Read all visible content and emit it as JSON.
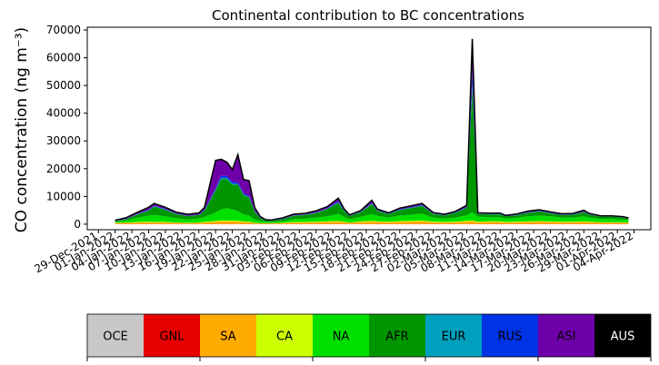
{
  "chart_data": {
    "type": "area",
    "stacked": true,
    "title": "Continental contribution to BC concentrations",
    "xlabel": "",
    "ylabel": "CO concentration (ng m⁻³)",
    "ylim": [
      -2000,
      71000
    ],
    "y_ticks": [
      0,
      10000,
      20000,
      30000,
      40000,
      50000,
      60000,
      70000
    ],
    "y_tick_labels": [
      "0",
      "10000",
      "20000",
      "30000",
      "40000",
      "50000",
      "60000",
      "70000"
    ],
    "x_range": [
      "2021-12-27",
      "2022-04-07"
    ],
    "x_ticks": [
      "2021-12-29",
      "2022-01-01",
      "2022-01-04",
      "2022-01-07",
      "2022-01-10",
      "2022-01-13",
      "2022-01-16",
      "2022-01-19",
      "2022-01-22",
      "2022-01-25",
      "2022-01-28",
      "2022-01-31",
      "2022-02-03",
      "2022-02-06",
      "2022-02-09",
      "2022-02-12",
      "2022-02-15",
      "2022-02-18",
      "2022-02-21",
      "2022-02-24",
      "2022-02-27",
      "2022-03-02",
      "2022-03-05",
      "2022-03-08",
      "2022-03-11",
      "2022-03-14",
      "2022-03-17",
      "2022-03-20",
      "2022-03-23",
      "2022-03-26",
      "2022-03-29",
      "2022-04-01",
      "2022-04-04"
    ],
    "x_tick_labels": [
      "29-Dec-2021",
      "01-Jan-2022",
      "04-Jan-2022",
      "07-Jan-2022",
      "10-Jan-2022",
      "13-Jan-2022",
      "16-Jan-2022",
      "19-Jan-2022",
      "22-Jan-2022",
      "25-Jan-2022",
      "28-Jan-2022",
      "31-Jan-2022",
      "03-Feb-2022",
      "06-Feb-2022",
      "09-Feb-2022",
      "12-Feb-2022",
      "15-Feb-2022",
      "18-Feb-2022",
      "21-Feb-2022",
      "24-Feb-2022",
      "27-Feb-2022",
      "02-Mar-2022",
      "05-Mar-2022",
      "08-Mar-2022",
      "11-Mar-2022",
      "14-Mar-2022",
      "17-Mar-2022",
      "20-Mar-2022",
      "23-Mar-2022",
      "26-Mar-2022",
      "29-Mar-2022",
      "01-Apr-2022",
      "04-Apr-2022"
    ],
    "grid": false,
    "legend_position": "bottom",
    "x": [
      "2022-01-01",
      "2022-01-03",
      "2022-01-05",
      "2022-01-07",
      "2022-01-08",
      "2022-01-10",
      "2022-01-12",
      "2022-01-14",
      "2022-01-16",
      "2022-01-17",
      "2022-01-19",
      "2022-01-20",
      "2022-01-21",
      "2022-01-22",
      "2022-01-23",
      "2022-01-24",
      "2022-01-25",
      "2022-01-26",
      "2022-01-27",
      "2022-01-28",
      "2022-01-29",
      "2022-01-31",
      "2022-02-02",
      "2022-02-04",
      "2022-02-06",
      "2022-02-08",
      "2022-02-10",
      "2022-02-11",
      "2022-02-12",
      "2022-02-14",
      "2022-02-16",
      "2022-02-17",
      "2022-02-19",
      "2022-02-21",
      "2022-02-23",
      "2022-02-25",
      "2022-02-27",
      "2022-03-01",
      "2022-03-03",
      "2022-03-05",
      "2022-03-06",
      "2022-03-07",
      "2022-03-09",
      "2022-03-11",
      "2022-03-12",
      "2022-03-14",
      "2022-03-16",
      "2022-03-18",
      "2022-03-20",
      "2022-03-22",
      "2022-03-24",
      "2022-03-26",
      "2022-03-27",
      "2022-03-29",
      "2022-03-31",
      "2022-04-02",
      "2022-04-03"
    ],
    "series": [
      {
        "name": "GNL",
        "values": [
          100,
          100,
          100,
          100,
          100,
          100,
          100,
          100,
          100,
          100,
          100,
          100,
          100,
          100,
          100,
          100,
          100,
          100,
          100,
          100,
          100,
          100,
          100,
          100,
          100,
          100,
          100,
          100,
          100,
          100,
          100,
          100,
          100,
          100,
          100,
          100,
          100,
          100,
          100,
          100,
          100,
          100,
          100,
          100,
          100,
          100,
          100,
          100,
          100,
          100,
          100,
          100,
          100,
          100,
          100,
          100,
          100
        ]
      },
      {
        "name": "SA",
        "values": [
          300,
          400,
          500,
          600,
          500,
          500,
          400,
          300,
          400,
          500,
          800,
          900,
          900,
          900,
          800,
          700,
          600,
          300,
          200,
          200,
          200,
          300,
          500,
          500,
          600,
          700,
          800,
          600,
          400,
          700,
          800,
          700,
          600,
          700,
          800,
          900,
          600,
          500,
          600,
          800,
          900,
          600,
          700,
          700,
          500,
          600,
          700,
          800,
          700,
          600,
          600,
          700,
          600,
          500,
          500,
          500,
          400
        ]
      },
      {
        "name": "CA",
        "values": [
          100,
          100,
          200,
          200,
          200,
          200,
          100,
          100,
          100,
          200,
          300,
          300,
          300,
          300,
          300,
          200,
          200,
          100,
          100,
          100,
          100,
          100,
          200,
          200,
          200,
          200,
          300,
          200,
          100,
          200,
          300,
          200,
          200,
          300,
          300,
          300,
          200,
          200,
          200,
          300,
          300,
          200,
          200,
          200,
          200,
          200,
          200,
          200,
          200,
          200,
          200,
          200,
          200,
          100,
          100,
          100,
          100
        ]
      },
      {
        "name": "NA",
        "values": [
          400,
          800,
          1500,
          2200,
          2500,
          2000,
          1500,
          1200,
          1400,
          1800,
          3000,
          4000,
          4500,
          4000,
          3500,
          2500,
          2200,
          1200,
          800,
          500,
          400,
          600,
          1000,
          1200,
          1500,
          1800,
          2500,
          1800,
          1200,
          1600,
          2500,
          2000,
          1500,
          2000,
          2200,
          2500,
          1500,
          1200,
          1500,
          2000,
          3000,
          1800,
          1500,
          1500,
          1200,
          1400,
          1800,
          2000,
          1800,
          1500,
          1500,
          1800,
          1500,
          1200,
          1200,
          1000,
          900
        ]
      },
      {
        "name": "AFR",
        "values": [
          200,
          400,
          1200,
          1800,
          3000,
          2400,
          1500,
          1200,
          1300,
          2200,
          8000,
          11000,
          10500,
          9000,
          9500,
          7000,
          6500,
          2800,
          1000,
          400,
          400,
          700,
          1200,
          1300,
          1600,
          2600,
          4000,
          2100,
          1100,
          1700,
          3500,
          1800,
          1200,
          2000,
          2400,
          2800,
          1300,
          1100,
          1700,
          2700,
          45000,
          1000,
          1000,
          1000,
          800,
          900,
          1300,
          1500,
          1100,
          900,
          1000,
          1500,
          1000,
          800,
          800,
          700,
          500
        ]
      },
      {
        "name": "EUR",
        "values": [
          50,
          50,
          100,
          100,
          150,
          100,
          100,
          50,
          50,
          100,
          300,
          400,
          400,
          300,
          300,
          200,
          200,
          100,
          50,
          50,
          50,
          50,
          100,
          100,
          100,
          100,
          200,
          100,
          50,
          100,
          200,
          100,
          100,
          100,
          100,
          100,
          100,
          50,
          100,
          100,
          1500,
          100,
          100,
          100,
          50,
          100,
          100,
          100,
          100,
          50,
          50,
          100,
          50,
          50,
          50,
          50,
          50
        ]
      },
      {
        "name": "RUS",
        "values": [
          50,
          100,
          100,
          200,
          200,
          200,
          100,
          100,
          100,
          200,
          500,
          700,
          700,
          600,
          600,
          400,
          400,
          200,
          100,
          50,
          50,
          100,
          100,
          100,
          100,
          200,
          300,
          200,
          100,
          100,
          200,
          100,
          100,
          200,
          200,
          200,
          100,
          100,
          100,
          200,
          4000,
          100,
          100,
          100,
          100,
          100,
          100,
          100,
          100,
          100,
          100,
          100,
          100,
          50,
          50,
          50,
          50
        ]
      },
      {
        "name": "ASI",
        "values": [
          200,
          400,
          600,
          900,
          800,
          600,
          500,
          500,
          600,
          900,
          10000,
          6000,
          5000,
          4500,
          10000,
          5000,
          5500,
          1200,
          400,
          200,
          200,
          300,
          400,
          400,
          600,
          600,
          1200,
          500,
          300,
          400,
          1000,
          400,
          300,
          400,
          500,
          600,
          300,
          300,
          300,
          600,
          12000,
          200,
          300,
          300,
          200,
          300,
          400,
          400,
          300,
          300,
          300,
          500,
          300,
          200,
          200,
          200,
          150
        ]
      },
      {
        "name": "AUS",
        "values": [
          0,
          0,
          0,
          0,
          0,
          0,
          0,
          0,
          0,
          0,
          0,
          0,
          0,
          0,
          0,
          0,
          0,
          0,
          0,
          0,
          0,
          0,
          0,
          0,
          0,
          0,
          0,
          0,
          0,
          0,
          0,
          0,
          0,
          0,
          0,
          0,
          0,
          0,
          0,
          0,
          0,
          0,
          0,
          0,
          0,
          0,
          0,
          0,
          0,
          0,
          0,
          0,
          0,
          0,
          0,
          0,
          0
        ]
      }
    ],
    "colors": {
      "OCE": "#c8c8c8",
      "GNL": "#e60000",
      "SA": "#ffaa00",
      "CA": "#ccff00",
      "NA": "#00e000",
      "AFR": "#009600",
      "EUR": "#00a0be",
      "RUS": "#0032e6",
      "ASI": "#6e00aa",
      "AUS": "#000000"
    },
    "legend": [
      {
        "label": "OCE",
        "color": "#c8c8c8",
        "text_color": "#000000"
      },
      {
        "label": "GNL",
        "color": "#e60000",
        "text_color": "#000000"
      },
      {
        "label": "SA",
        "color": "#ffaa00",
        "text_color": "#000000"
      },
      {
        "label": "CA",
        "color": "#ccff00",
        "text_color": "#000000"
      },
      {
        "label": "NA",
        "color": "#00e000",
        "text_color": "#000000"
      },
      {
        "label": "AFR",
        "color": "#009600",
        "text_color": "#000000"
      },
      {
        "label": "EUR",
        "color": "#00a0be",
        "text_color": "#000000"
      },
      {
        "label": "RUS",
        "color": "#0032e6",
        "text_color": "#000000"
      },
      {
        "label": "ASI",
        "color": "#6e00aa",
        "text_color": "#000000"
      },
      {
        "label": "AUS",
        "color": "#000000",
        "text_color": "#ffffff"
      }
    ]
  }
}
